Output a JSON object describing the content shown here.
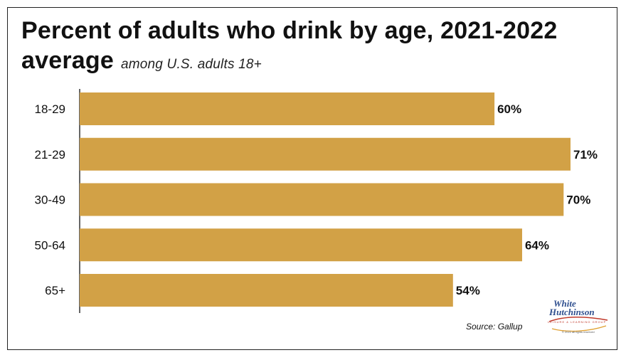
{
  "title_line1": "Percent of adults who drink by age, 2021-2022",
  "title_line2": "average",
  "subtitle": "among U.S. adults 18+",
  "source": "Source: Gallup",
  "logo": {
    "line1": "White",
    "line2": "Hutchinson",
    "tagline": "LEISURE & LEARNING GROUP",
    "copyright": "© 2022 all rights reserved"
  },
  "colors": {
    "bar": "#d2a146",
    "axis": "#333333",
    "text": "#111111"
  },
  "chart_data": {
    "type": "bar",
    "orientation": "horizontal",
    "title": "Percent of adults who drink by age, 2021-2022 average",
    "subtitle": "among U.S. adults 18+",
    "categories": [
      "18-29",
      "21-29",
      "30-49",
      "50-64",
      "65+"
    ],
    "values": [
      60,
      71,
      70,
      64,
      54
    ],
    "value_labels": [
      "60%",
      "71%",
      "70%",
      "64%",
      "54%"
    ],
    "xlim": [
      0,
      71
    ],
    "grid": false,
    "legend": "none"
  }
}
